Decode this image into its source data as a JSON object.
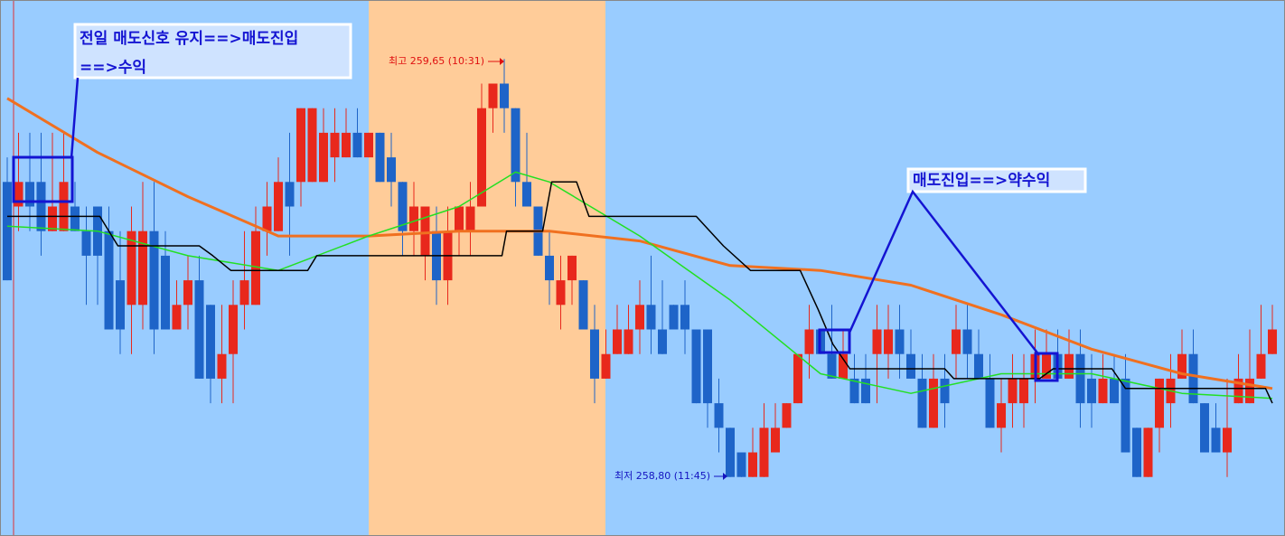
{
  "chart_data": {
    "type": "candlestick",
    "ylim": [
      258.68,
      259.77
    ],
    "up_color": "#e8281c",
    "down_color": "#1e64c8",
    "open": [
      259.4,
      259.35,
      259.4,
      259.4,
      259.3,
      259.3,
      259.35,
      259.3,
      259.35,
      259.3,
      259.2,
      259.15,
      259.15,
      259.3,
      259.25,
      259.1,
      259.15,
      259.2,
      259.15,
      259,
      259.05,
      259.15,
      259.15,
      259.3,
      259.3,
      259.4,
      259.4,
      259.4,
      259.4,
      259.45,
      259.45,
      259.5,
      259.45,
      259.5,
      259.45,
      259.4,
      259.3,
      259.25,
      259.3,
      259.2,
      259.3,
      259.3,
      259.35,
      259.55,
      259.6,
      259.55,
      259.4,
      259.35,
      259.25,
      259.15,
      259.2,
      259.2,
      259.1,
      259,
      259.05,
      259.05,
      259.1,
      259.15,
      259.1,
      259.15,
      259.15,
      259.1,
      259.1,
      258.95,
      258.9,
      258.85,
      258.8,
      258.8,
      258.85,
      258.9,
      258.95,
      259.05,
      259.1,
      259.05,
      259,
      259,
      259,
      259.05,
      259.05,
      259.1,
      259.05,
      259,
      258.9,
      259,
      259.05,
      259.1,
      259.05,
      259,
      258.9,
      258.95,
      258.95,
      259,
      259,
      259.05,
      259,
      259.05,
      259,
      258.95,
      259,
      259,
      258.9,
      258.8,
      258.9,
      258.95,
      259,
      259.05,
      258.95,
      258.9,
      258.85,
      258.95,
      258.95,
      259,
      259.05
    ],
    "high": [
      259.45,
      259.5,
      259.5,
      259.5,
      259.5,
      259.5,
      259.4,
      259.35,
      259.35,
      259.35,
      259.3,
      259.35,
      259.4,
      259.4,
      259.3,
      259.2,
      259.25,
      259.25,
      259.15,
      259.15,
      259.2,
      259.3,
      259.35,
      259.4,
      259.45,
      259.5,
      259.55,
      259.55,
      259.55,
      259.55,
      259.55,
      259.55,
      259.5,
      259.5,
      259.5,
      259.4,
      259.4,
      259.35,
      259.35,
      259.35,
      259.35,
      259.4,
      259.6,
      259.6,
      259.65,
      259.55,
      259.5,
      259.35,
      259.3,
      259.25,
      259.25,
      259.2,
      259.15,
      259.1,
      259.15,
      259.15,
      259.2,
      259.25,
      259.2,
      259.15,
      259.2,
      259.1,
      259.1,
      259,
      258.9,
      258.85,
      258.9,
      258.95,
      258.95,
      258.95,
      259.05,
      259.15,
      259.1,
      259.15,
      259.1,
      259.05,
      259.05,
      259.15,
      259.15,
      259.15,
      259.1,
      259.05,
      259.05,
      259.05,
      259.15,
      259.15,
      259.1,
      259.05,
      259,
      259.05,
      259.05,
      259.1,
      259.1,
      259.1,
      259.1,
      259.1,
      259.05,
      259.05,
      259.05,
      259.05,
      258.9,
      258.9,
      259,
      259.05,
      259.1,
      259.1,
      258.95,
      258.95,
      259,
      259.05,
      259.1,
      259.15,
      259.15
    ],
    "low": [
      259.2,
      259.3,
      259.3,
      259.25,
      259.3,
      259.3,
      259.3,
      259.15,
      259.15,
      259.1,
      259.05,
      259.05,
      259.1,
      259.05,
      259.1,
      259.1,
      259.1,
      259,
      258.95,
      258.95,
      258.95,
      259.1,
      259.15,
      259.25,
      259.3,
      259.25,
      259.35,
      259.4,
      259.4,
      259.4,
      259.45,
      259.45,
      259.45,
      259.4,
      259.35,
      259.25,
      259.25,
      259.2,
      259.15,
      259.15,
      259.25,
      259.25,
      259.35,
      259.5,
      259.5,
      259.35,
      259.35,
      259.25,
      259.15,
      259.1,
      259.15,
      259.1,
      258.95,
      259,
      259.05,
      259.05,
      259.05,
      259.05,
      259.05,
      259.1,
      259.05,
      258.95,
      258.9,
      258.85,
      258.8,
      258.8,
      258.8,
      258.8,
      258.85,
      258.9,
      258.95,
      259,
      259.05,
      259,
      259,
      258.95,
      258.95,
      258.95,
      259,
      259,
      259,
      258.9,
      258.9,
      258.9,
      259,
      259,
      259,
      258.9,
      258.85,
      258.9,
      258.9,
      258.95,
      259,
      259,
      259,
      258.9,
      258.9,
      258.95,
      258.95,
      258.85,
      258.8,
      258.8,
      258.85,
      258.9,
      259,
      258.95,
      258.85,
      258.85,
      258.8,
      258.95,
      258.95,
      259,
      259.05
    ],
    "close": [
      259.2,
      259.4,
      259.35,
      259.3,
      259.35,
      259.4,
      259.3,
      259.25,
      259.25,
      259.1,
      259.1,
      259.3,
      259.3,
      259.1,
      259.1,
      259.15,
      259.2,
      259,
      259,
      259.05,
      259.15,
      259.2,
      259.3,
      259.35,
      259.4,
      259.35,
      259.55,
      259.55,
      259.5,
      259.5,
      259.5,
      259.45,
      259.5,
      259.4,
      259.4,
      259.3,
      259.35,
      259.35,
      259.2,
      259.3,
      259.35,
      259.35,
      259.55,
      259.6,
      259.55,
      259.4,
      259.35,
      259.25,
      259.2,
      259.2,
      259.25,
      259.1,
      259,
      259.05,
      259.1,
      259.1,
      259.15,
      259.1,
      259.05,
      259.1,
      259.1,
      258.95,
      258.95,
      258.9,
      258.8,
      258.8,
      258.85,
      258.9,
      258.9,
      258.95,
      259.05,
      259.1,
      259.05,
      259,
      259.05,
      258.95,
      258.95,
      259.1,
      259.1,
      259.05,
      259,
      258.9,
      259,
      258.95,
      259.1,
      259.05,
      259,
      258.9,
      258.95,
      259,
      259,
      259.05,
      259.05,
      259,
      259.05,
      258.95,
      258.95,
      259,
      258.95,
      258.85,
      258.8,
      258.9,
      259,
      259,
      259.05,
      258.95,
      258.85,
      258.85,
      258.9,
      259,
      259,
      259.05,
      259.1
    ],
    "lines": [
      {
        "color": "#f07020",
        "x": [
          0,
          8,
          16,
          24,
          32,
          40,
          48,
          56,
          64,
          72,
          80,
          88,
          96,
          104,
          112
        ],
        "values": [
          259.57,
          259.46,
          259.37,
          259.29,
          259.29,
          259.3,
          259.3,
          259.28,
          259.23,
          259.22,
          259.19,
          259.13,
          259.06,
          259.01,
          258.98
        ]
      },
      {
        "color": "#22e022",
        "x": [
          0,
          8,
          16,
          24,
          32,
          40,
          45,
          48,
          56,
          64,
          72,
          80,
          88,
          96,
          104,
          112
        ],
        "values": [
          259.31,
          259.3,
          259.25,
          259.22,
          259.29,
          259.35,
          259.42,
          259.4,
          259.29,
          259.16,
          259.01,
          258.97,
          259.01,
          259.01,
          258.97,
          258.96
        ]
      },
      {
        "color": "#000000",
        "x": [
          0,
          8.2,
          9.8,
          17,
          18.2,
          19.8,
          26.6,
          27.4,
          43.8,
          44.2,
          47.4,
          48.2,
          50.4,
          51.5,
          61,
          63.4,
          65.8,
          70.2,
          71.8,
          73.1,
          74.6,
          83,
          83.8,
          91.4,
          92.6,
          97.8,
          99,
          111.4,
          112
        ],
        "values": [
          259.33,
          259.33,
          259.27,
          259.27,
          259.25,
          259.22,
          259.22,
          259.25,
          259.25,
          259.3,
          259.3,
          259.4,
          259.4,
          259.33,
          259.33,
          259.27,
          259.22,
          259.22,
          259.14,
          259.07,
          259.02,
          259.02,
          259,
          259,
          259.02,
          259.02,
          258.98,
          258.98,
          258.95
        ]
      }
    ],
    "annotations": [
      "전일 매도신호 유지==>매도진입",
      "==>수익",
      "매도진입==>약수익",
      "최고 259,65 (10:31)",
      "최저 258,80 (11:45)"
    ]
  }
}
